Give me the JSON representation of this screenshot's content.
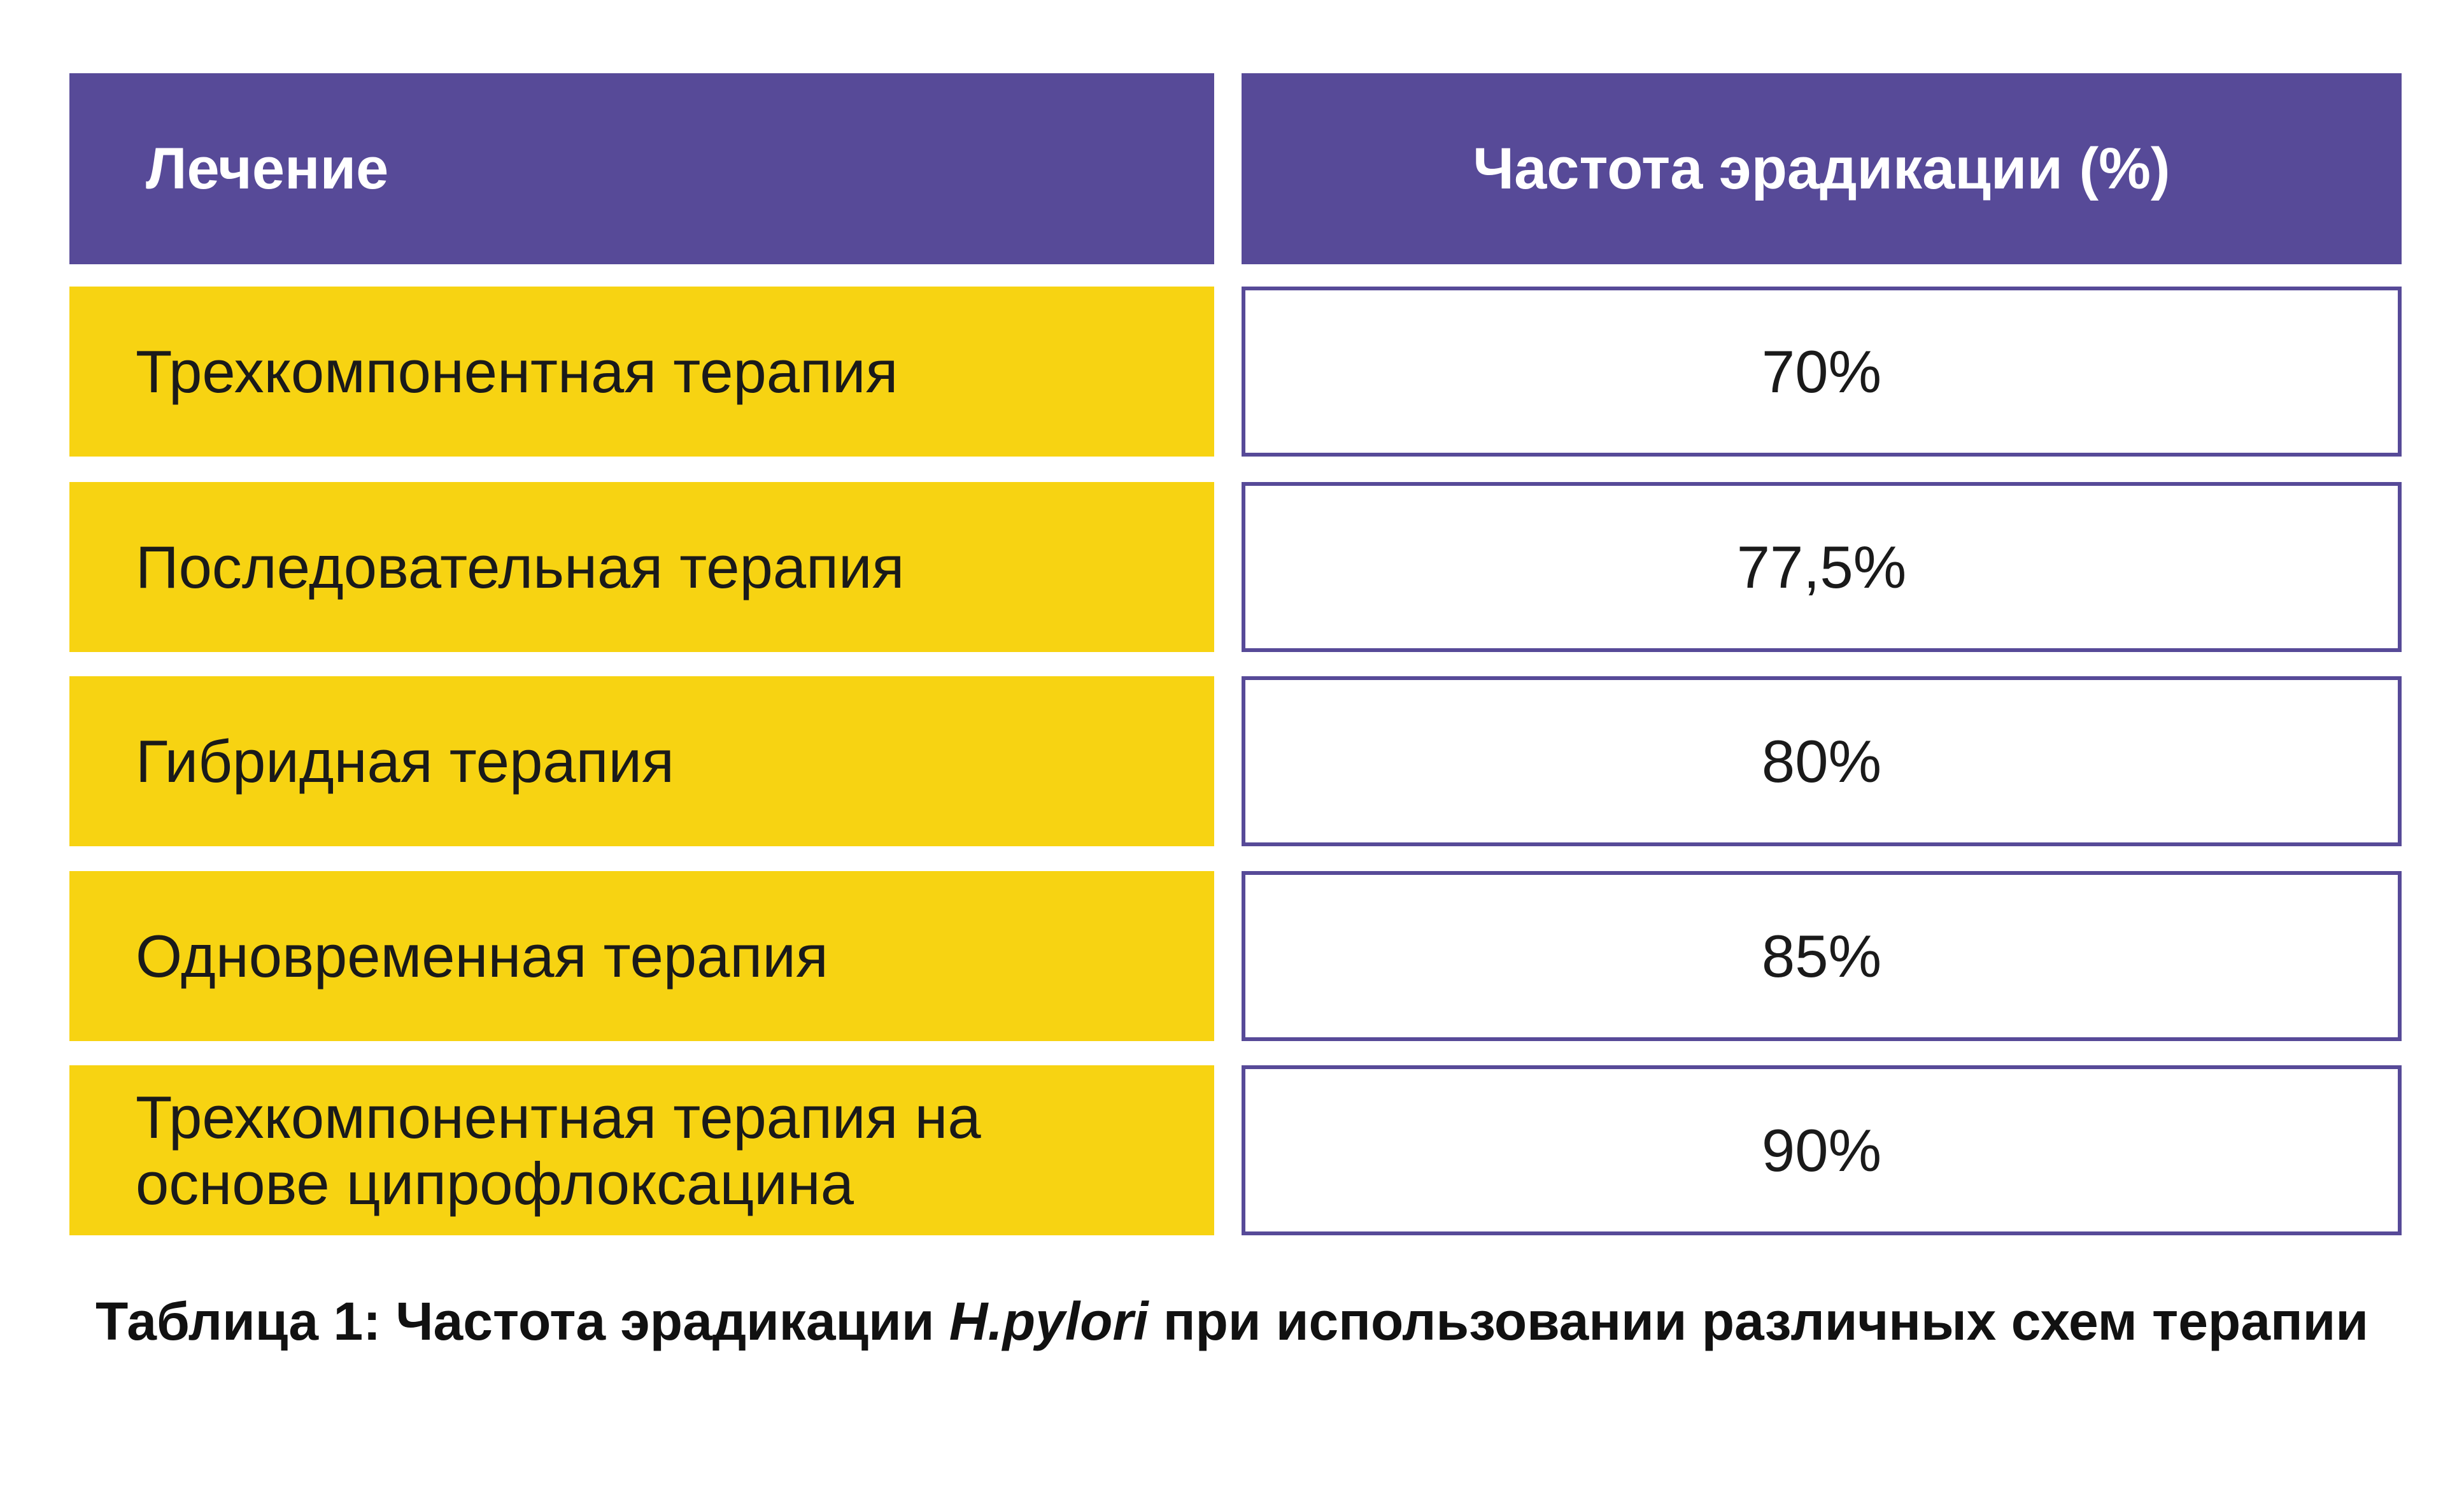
{
  "chart_data": {
    "type": "table",
    "columns": [
      "Лечение",
      "Частота эрадикации (%)"
    ],
    "rows": [
      {
        "treatment": "Трехкомпонентная терапия",
        "rate": "70%",
        "value": 70
      },
      {
        "treatment": "Последовательная терапия",
        "rate": "77,5%",
        "value": 77.5
      },
      {
        "treatment": "Гибридная терапия",
        "rate": "80%",
        "value": 80
      },
      {
        "treatment": "Одновременная терапия",
        "rate": "85%",
        "value": 85
      },
      {
        "treatment": "Трехкомпонентная терапия на основе ципрофлоксацина",
        "rate": "90%",
        "value": 90
      }
    ]
  },
  "caption": {
    "prefix": "Таблица 1: Частота эрадикации ",
    "italic": "H.pylori",
    "suffix": " при использовании различных схем терапии"
  },
  "colors": {
    "header_bg": "#574a98",
    "treatment_bg": "#f7d312",
    "rate_border": "#574a98"
  }
}
